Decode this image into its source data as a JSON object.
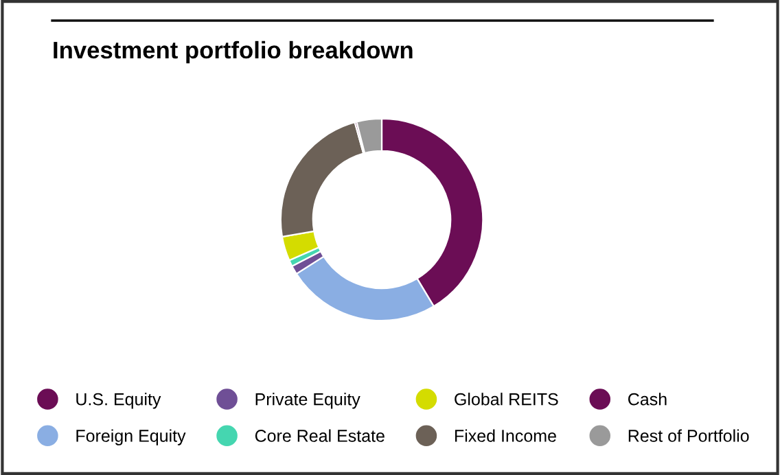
{
  "chart_data": {
    "type": "donut",
    "title": "Investment portfolio breakdown",
    "categories": [
      "U.S. Equity",
      "Foreign Equity",
      "Private Equity",
      "Core Real Estate",
      "Global REITS",
      "Fixed Income",
      "Cash",
      "Rest of Portfolio"
    ],
    "values": [
      41.4,
      24.6,
      1.4,
      1.0,
      3.9,
      23.4,
      0.3,
      4.0
    ],
    "colors": [
      "#6b0d55",
      "#8aaee3",
      "#6f4f96",
      "#45d6b0",
      "#d4dc00",
      "#6c6157",
      "#6b0d55",
      "#9a9a9a"
    ],
    "legend": "bottom"
  }
}
